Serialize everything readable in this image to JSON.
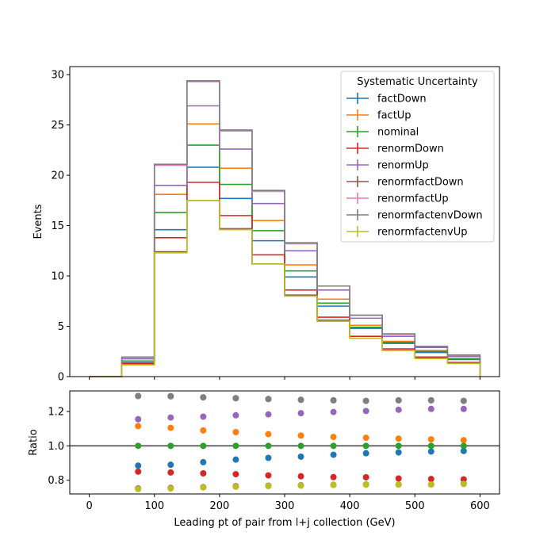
{
  "chart_data": [
    {
      "type": "step",
      "panel": "main",
      "ylabel": "Events",
      "xlim": [
        -30,
        630
      ],
      "ylim": [
        0,
        30.8
      ],
      "xticks": [
        0,
        100,
        200,
        300,
        400,
        500,
        600
      ],
      "yticks": [
        0,
        5,
        10,
        15,
        20,
        25,
        30
      ],
      "bin_edges": [
        0,
        50,
        100,
        150,
        200,
        250,
        300,
        350,
        400,
        450,
        500,
        550,
        600
      ],
      "legend": {
        "title": "Systematic Uncertainty",
        "placement": "upper right"
      },
      "series": [
        {
          "name": "factDown",
          "color": "#1f77b4",
          "values": [
            0,
            1.38,
            14.6,
            20.8,
            17.7,
            13.5,
            9.9,
            7.0,
            4.8,
            3.3,
            2.4,
            1.7
          ]
        },
        {
          "name": "factUp",
          "color": "#ff7f0e",
          "values": [
            0,
            1.76,
            18.1,
            25.1,
            20.7,
            15.5,
            11.1,
            7.7,
            5.1,
            3.5,
            2.6,
            1.8
          ]
        },
        {
          "name": "nominal",
          "color": "#2ca02c",
          "values": [
            0,
            1.55,
            16.3,
            23.0,
            19.1,
            14.5,
            10.5,
            7.3,
            4.9,
            3.4,
            2.5,
            1.75
          ]
        },
        {
          "name": "renormDown",
          "color": "#d62728",
          "values": [
            0,
            1.3,
            13.8,
            19.3,
            16.0,
            12.1,
            8.6,
            5.9,
            4.0,
            2.75,
            1.95,
            1.4
          ]
        },
        {
          "name": "renormUp",
          "color": "#9467bd",
          "values": [
            0,
            1.8,
            19.0,
            26.9,
            22.6,
            17.2,
            12.5,
            8.6,
            5.8,
            4.0,
            2.9,
            2.0
          ]
        },
        {
          "name": "renormfactDown",
          "color": "#8c564b",
          "values": [
            0,
            1.2,
            12.4,
            17.5,
            14.7,
            11.2,
            8.1,
            5.6,
            3.8,
            2.6,
            1.85,
            1.35
          ]
        },
        {
          "name": "renormfactUp",
          "color": "#e377c2",
          "values": [
            0,
            1.95,
            21.0,
            29.3,
            24.4,
            18.4,
            13.2,
            9.0,
            6.1,
            4.2,
            3.0,
            2.1
          ]
        },
        {
          "name": "renormfactenvDown",
          "color": "#7f7f7f",
          "values": [
            0,
            1.95,
            21.1,
            29.4,
            24.5,
            18.5,
            13.3,
            9.0,
            6.1,
            4.25,
            3.0,
            2.15
          ]
        },
        {
          "name": "renormfactenvUp",
          "color": "#bcbd22",
          "values": [
            0,
            1.17,
            12.3,
            17.5,
            14.6,
            11.2,
            8.0,
            5.5,
            3.8,
            2.6,
            1.8,
            1.3
          ]
        }
      ]
    },
    {
      "type": "scatter",
      "panel": "ratio",
      "xlabel": "Leading pt of pair from l+j collection (GeV)",
      "ylabel": "Ratio",
      "xlim": [
        -30,
        630
      ],
      "ylim": [
        0.72,
        1.32
      ],
      "xticks": [
        0,
        100,
        200,
        300,
        400,
        500,
        600
      ],
      "yticks": [
        0.8,
        1.0,
        1.2
      ],
      "reference_line": 1.0,
      "x": [
        75,
        125,
        175,
        225,
        275,
        325,
        375,
        425,
        475,
        525,
        575
      ],
      "series": [
        {
          "name": "factDown",
          "color": "#1f77b4",
          "values": [
            0.885,
            0.89,
            0.905,
            0.92,
            0.93,
            0.937,
            0.948,
            0.957,
            0.962,
            0.967,
            0.97
          ]
        },
        {
          "name": "factUp",
          "color": "#ff7f0e",
          "values": [
            1.115,
            1.105,
            1.09,
            1.08,
            1.068,
            1.06,
            1.052,
            1.047,
            1.042,
            1.038,
            1.033
          ]
        },
        {
          "name": "nominal",
          "color": "#2ca02c",
          "values": [
            1.0,
            1.0,
            1.0,
            1.0,
            1.0,
            1.0,
            1.0,
            1.0,
            1.0,
            1.0,
            1.0
          ]
        },
        {
          "name": "renormDown",
          "color": "#d62728",
          "values": [
            0.85,
            0.845,
            0.84,
            0.835,
            0.828,
            0.823,
            0.818,
            0.817,
            0.81,
            0.807,
            0.805
          ]
        },
        {
          "name": "renormUp",
          "color": "#9467bd",
          "values": [
            1.155,
            1.165,
            1.17,
            1.178,
            1.183,
            1.19,
            1.197,
            1.203,
            1.21,
            1.215,
            1.215
          ]
        },
        {
          "name": "renormfactDown",
          "color": "#8c564b",
          "values": [
            0.752,
            0.755,
            0.76,
            0.765,
            0.768,
            0.77,
            0.773,
            0.775,
            0.775,
            0.775,
            0.78
          ]
        },
        {
          "name": "renormfactUp",
          "color": "#e377c2",
          "values": [
            1.29,
            1.29,
            1.283,
            1.278,
            1.273,
            1.268,
            1.265,
            1.262,
            1.265,
            1.265,
            1.262
          ]
        },
        {
          "name": "renormfactenvDown",
          "color": "#7f7f7f",
          "values": [
            1.29,
            1.288,
            1.282,
            1.277,
            1.272,
            1.268,
            1.265,
            1.262,
            1.265,
            1.265,
            1.262
          ]
        },
        {
          "name": "renormfactenvUp",
          "color": "#bcbd22",
          "values": [
            0.748,
            0.752,
            0.758,
            0.762,
            0.766,
            0.768,
            0.772,
            0.774,
            0.775,
            0.775,
            0.778
          ]
        }
      ]
    }
  ]
}
